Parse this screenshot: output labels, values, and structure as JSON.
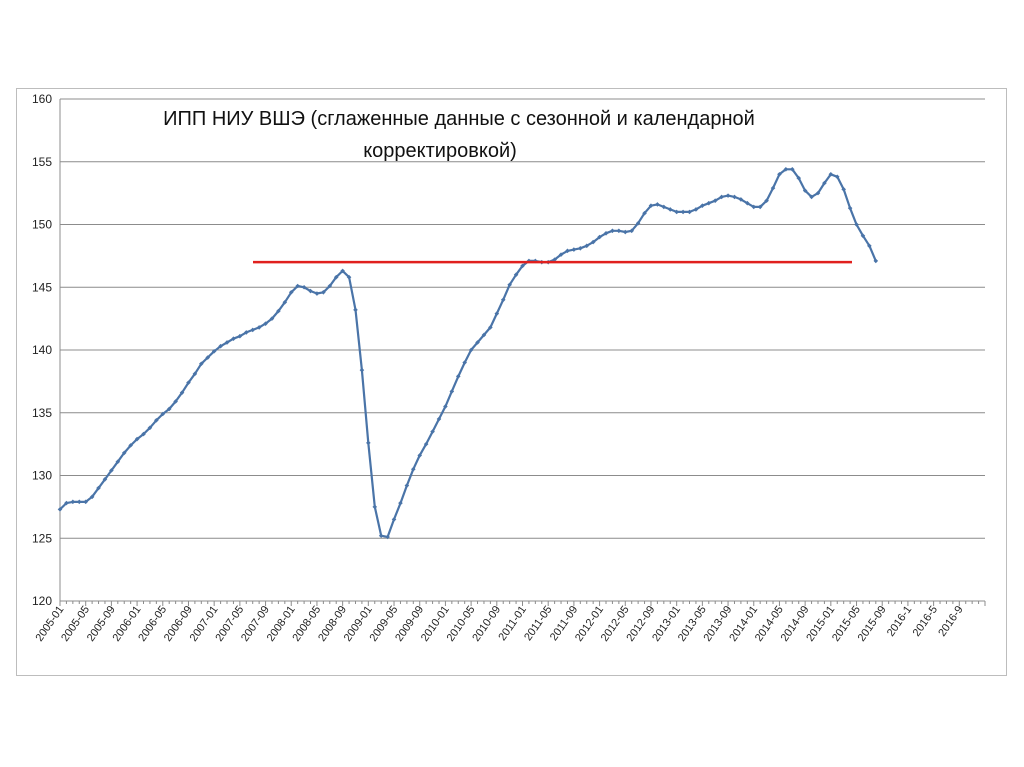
{
  "chart_data": {
    "type": "line",
    "title": "ИПП НИУ ВШЭ (сглаженные данные с сезонной и календарной корректировкой)",
    "title_lines": [
      "ИПП НИУ ВШЭ (сглаженные данные с сезонной и календарной",
      "корректировкой)"
    ],
    "xlabel": "",
    "ylabel": "",
    "ylim": [
      120,
      160
    ],
    "yticks": [
      120,
      125,
      130,
      135,
      140,
      145,
      150,
      155,
      160
    ],
    "grid": true,
    "legend": "none",
    "x_tick_labels": [
      "2005-01",
      "2005-05",
      "2005-09",
      "2006-01",
      "2006-05",
      "2006-09",
      "2007-01",
      "2007-05",
      "2007-09",
      "2008-01",
      "2008-05",
      "2008-09",
      "2009-01",
      "2009-05",
      "2009-09",
      "2010-01",
      "2010-05",
      "2010-09",
      "2011-01",
      "2011-05",
      "2011-09",
      "2012-01",
      "2012-05",
      "2012-09",
      "2013-01",
      "2013-05",
      "2013-09",
      "2014-01",
      "2014-05",
      "2014-09",
      "2015-01",
      "2015-05",
      "2015-09",
      "2016-1",
      "2016-5",
      "2016-9"
    ],
    "series": [
      {
        "color": "#4a74a8",
        "values": [
          127.3,
          127.8,
          127.9,
          127.9,
          127.9,
          128.3,
          129.0,
          129.7,
          130.4,
          131.1,
          131.8,
          132.4,
          132.9,
          133.3,
          133.8,
          134.4,
          134.9,
          135.3,
          135.9,
          136.6,
          137.4,
          138.1,
          138.9,
          139.4,
          139.9,
          140.3,
          140.6,
          140.9,
          141.1,
          141.4,
          141.6,
          141.8,
          142.1,
          142.5,
          143.1,
          143.8,
          144.6,
          145.1,
          145.0,
          144.7,
          144.5,
          144.6,
          145.1,
          145.8,
          146.3,
          145.8,
          143.2,
          138.4,
          132.6,
          127.5,
          125.2,
          125.1,
          126.5,
          127.8,
          129.2,
          130.5,
          131.6,
          132.5,
          133.5,
          134.5,
          135.5,
          136.7,
          137.9,
          139.0,
          140.0,
          140.6,
          141.2,
          141.8,
          142.9,
          144.0,
          145.2,
          146.0,
          146.7,
          147.1,
          147.1,
          147.0,
          147.0,
          147.2,
          147.6,
          147.9,
          148.0,
          148.1,
          148.3,
          148.6,
          149.0,
          149.3,
          149.5,
          149.5,
          149.4,
          149.5,
          150.1,
          150.9,
          151.5,
          151.6,
          151.4,
          151.2,
          151.0,
          151.0,
          151.0,
          151.2,
          151.5,
          151.7,
          151.9,
          152.2,
          152.3,
          152.2,
          152.0,
          151.7,
          151.4,
          151.4,
          151.9,
          152.9,
          154.0,
          154.4,
          154.4,
          153.7,
          152.7,
          152.2,
          152.5,
          153.3,
          154.0,
          153.8,
          152.8,
          151.3,
          150.0,
          149.1,
          148.3,
          147.1
        ]
      }
    ],
    "reference_line": {
      "value": 147.0,
      "color": "#e0201e"
    }
  }
}
